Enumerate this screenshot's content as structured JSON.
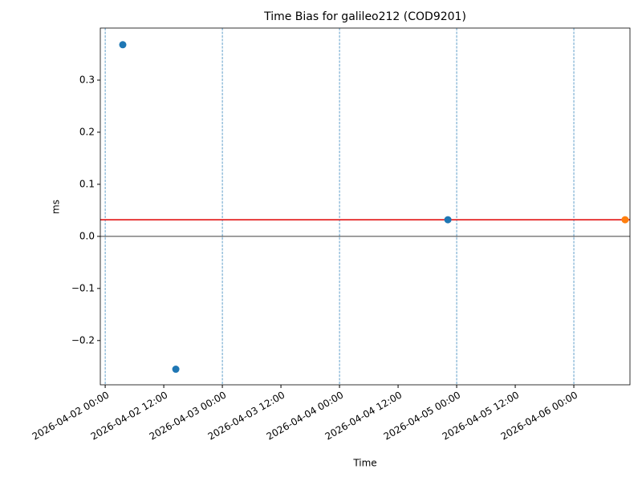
{
  "chart_data": {
    "type": "scatter",
    "title": "Time Bias for galileo212 (COD9201)",
    "x_label": "Time",
    "y_label": "ms",
    "series": [
      {
        "color": "#1f77b4",
        "x": [
          "2026-04-02 03:36",
          "2026-04-02 14:28",
          "2026-04-04 22:12"
        ],
        "values": [
          0.368,
          -0.255,
          0.032
        ]
      },
      {
        "color": "#ff7f0e",
        "x": [
          "2026-04-06 10:30"
        ],
        "values": [
          0.032
        ]
      }
    ],
    "hlines": [
      {
        "value": 0.032,
        "color": "#e00000"
      },
      {
        "value": 0,
        "color": "#000000"
      }
    ],
    "vlines": {
      "color": "#1f77b4",
      "x": [
        "2026-04-02 00:00",
        "2026-04-03 00:00",
        "2026-04-04 00:00",
        "2026-04-05 00:00",
        "2026-04-06 00:00"
      ]
    },
    "xlim": [
      "2026-04-01 23:00",
      "2026-04-06 11:30"
    ],
    "xticks": [
      "2026-04-02 00:00",
      "2026-04-02 12:00",
      "2026-04-03 00:00",
      "2026-04-03 12:00",
      "2026-04-04 00:00",
      "2026-04-04 12:00",
      "2026-04-05 00:00",
      "2026-04-05 12:00",
      "2026-04-06 00:00"
    ],
    "ylim": [
      -0.285,
      0.4
    ],
    "yticks": [
      {
        "value": -0.2,
        "label": "−0.2"
      },
      {
        "value": -0.1,
        "label": "−0.1"
      },
      {
        "value": 0,
        "label": "0.0"
      },
      0.1,
      0.2,
      0.3
    ]
  }
}
